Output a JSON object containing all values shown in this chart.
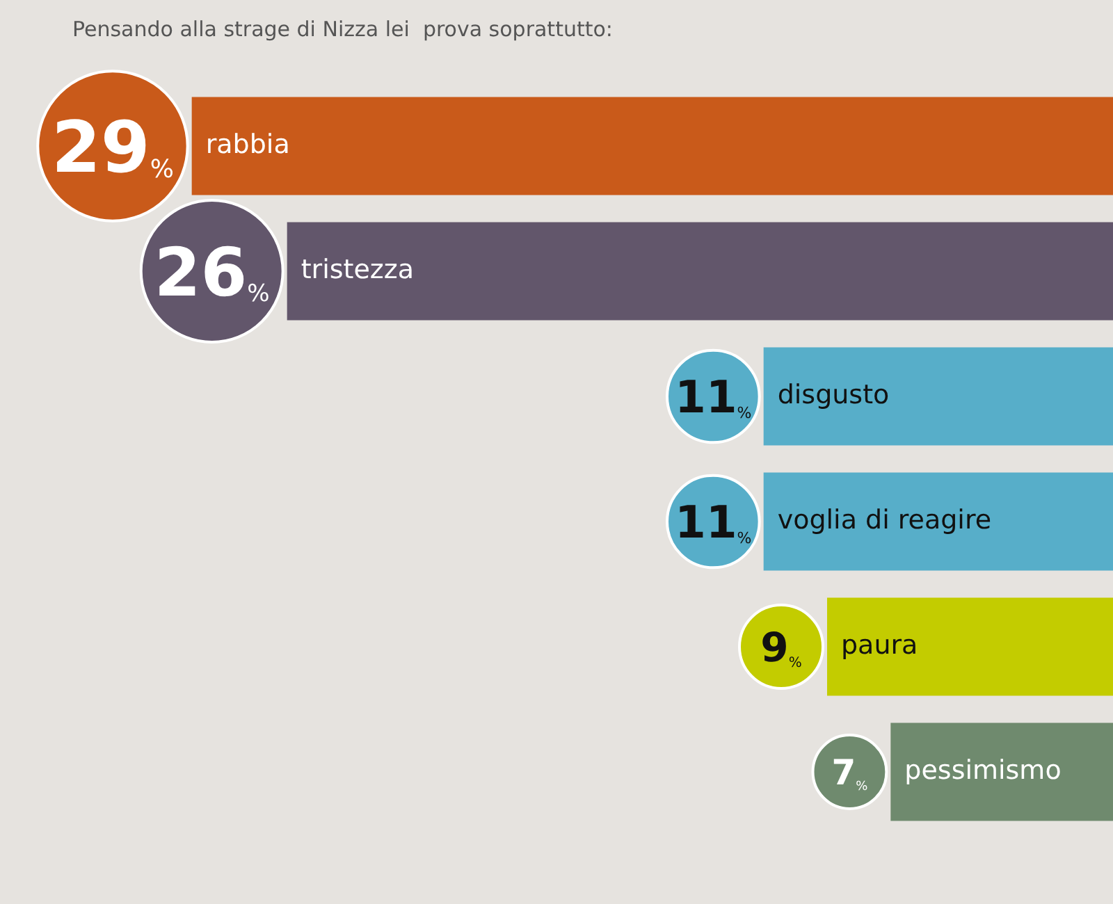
{
  "chart_data": {
    "type": "bar",
    "orientation": "horizontal",
    "title": "Pensando alla strage di Nizza lei  prova soprattutto:",
    "categories": [
      "rabbia",
      "tristezza",
      "disgusto",
      "voglia di reagire",
      "paura",
      "pessimismo"
    ],
    "values": [
      29,
      26,
      11,
      11,
      9,
      7
    ],
    "colors": [
      "#c95a1a",
      "#62566b",
      "#57aec9",
      "#57aec9",
      "#c3cc00",
      "#6f8a6e"
    ],
    "value_labels": [
      "29%",
      "26%",
      "11%",
      "11%",
      "9%",
      "7%"
    ],
    "legend": false
  }
}
